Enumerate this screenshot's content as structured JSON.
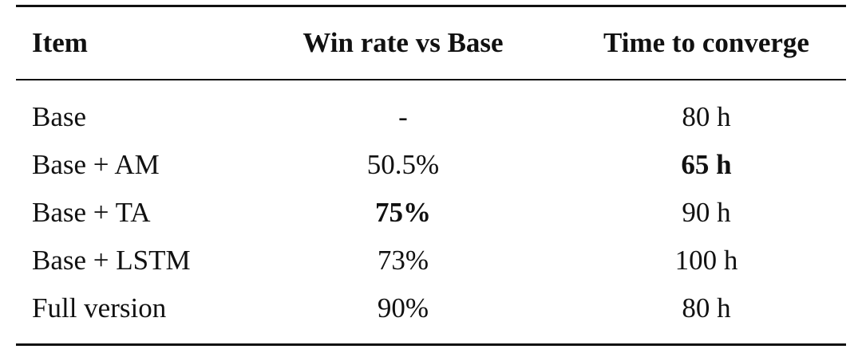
{
  "table": {
    "header": [
      "Item",
      "Win rate vs Base",
      "Time to converge"
    ],
    "rows": [
      [
        "Base",
        "-",
        "80 h"
      ],
      [
        "Base + AM",
        "50.5%",
        "65 h"
      ],
      [
        "Base + TA",
        "75%",
        "90 h"
      ],
      [
        "Base + LSTM",
        "73%",
        "100 h"
      ],
      [
        "Full version",
        "90%",
        "80 h"
      ]
    ]
  }
}
